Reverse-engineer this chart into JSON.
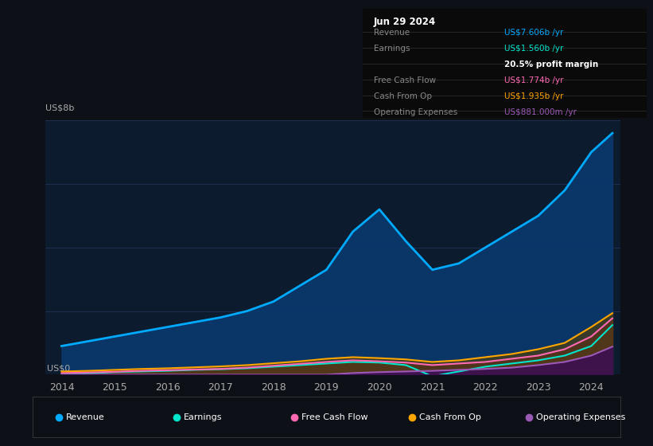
{
  "background_color": "#0d1117",
  "chart_bg": "#0d1b2e",
  "years": [
    2014,
    2014.5,
    2015,
    2015.5,
    2016,
    2016.5,
    2017,
    2017.5,
    2018,
    2018.5,
    2019,
    2019.5,
    2020,
    2020.5,
    2021,
    2021.5,
    2022,
    2022.5,
    2023,
    2023.5,
    2024,
    2024.4
  ],
  "revenue": [
    0.9,
    1.05,
    1.2,
    1.35,
    1.5,
    1.65,
    1.8,
    2.0,
    2.3,
    2.8,
    3.3,
    4.5,
    5.2,
    4.2,
    3.3,
    3.5,
    4.0,
    4.5,
    5.0,
    5.8,
    7.0,
    7.6
  ],
  "earnings": [
    0.0,
    0.04,
    0.08,
    0.1,
    0.12,
    0.15,
    0.17,
    0.2,
    0.25,
    0.3,
    0.35,
    0.4,
    0.38,
    0.3,
    -0.05,
    0.1,
    0.25,
    0.35,
    0.45,
    0.6,
    0.9,
    1.56
  ],
  "free_cash_flow": [
    0.05,
    0.07,
    0.09,
    0.12,
    0.14,
    0.16,
    0.18,
    0.22,
    0.28,
    0.34,
    0.4,
    0.45,
    0.42,
    0.38,
    0.3,
    0.35,
    0.4,
    0.5,
    0.6,
    0.8,
    1.2,
    1.774
  ],
  "cash_from_op": [
    0.1,
    0.12,
    0.15,
    0.18,
    0.2,
    0.23,
    0.26,
    0.3,
    0.36,
    0.42,
    0.5,
    0.55,
    0.52,
    0.48,
    0.4,
    0.45,
    0.55,
    0.65,
    0.8,
    1.0,
    1.5,
    1.935
  ],
  "op_expenses": [
    0.0,
    0.0,
    0.0,
    0.0,
    0.0,
    0.0,
    0.0,
    0.0,
    0.0,
    0.0,
    0.0,
    0.05,
    0.08,
    0.1,
    0.12,
    0.15,
    0.18,
    0.22,
    0.3,
    0.4,
    0.6,
    0.881
  ],
  "revenue_color": "#00aaff",
  "earnings_color": "#00e5cc",
  "fcf_color": "#ff69b4",
  "cashop_color": "#ffa500",
  "opex_color": "#9b59b6",
  "revenue_fill": "#0a3a6e",
  "earnings_fill": "#1a5a4a",
  "fcf_fill": "#5a1a3a",
  "cashop_fill": "#5a4000",
  "opex_fill": "#3a0a5a",
  "ylim": [
    0,
    8.0
  ],
  "ytick_values": [
    0,
    2,
    4,
    6,
    8
  ],
  "xtick_years": [
    2014,
    2015,
    2016,
    2017,
    2018,
    2019,
    2020,
    2021,
    2022,
    2023,
    2024
  ],
  "info_box": {
    "date": "Jun 29 2024",
    "revenue_val": "US$7.606b",
    "revenue_color": "#00aaff",
    "earnings_val": "US$1.560b",
    "earnings_color": "#00e5cc",
    "margin": "20.5%",
    "fcf_val": "US$1.774b",
    "fcf_color": "#ff69b4",
    "cashop_val": "US$1.935b",
    "cashop_color": "#ffa500",
    "opex_val": "US$881.000m",
    "opex_color": "#9b59b6"
  },
  "legend_items": [
    {
      "label": "Revenue",
      "color": "#00aaff"
    },
    {
      "label": "Earnings",
      "color": "#00e5cc"
    },
    {
      "label": "Free Cash Flow",
      "color": "#ff69b4"
    },
    {
      "label": "Cash From Op",
      "color": "#ffa500"
    },
    {
      "label": "Operating Expenses",
      "color": "#9b59b6"
    }
  ],
  "grid_color": "#1e3050",
  "text_color": "#aaaaaa",
  "white_color": "#ffffff"
}
